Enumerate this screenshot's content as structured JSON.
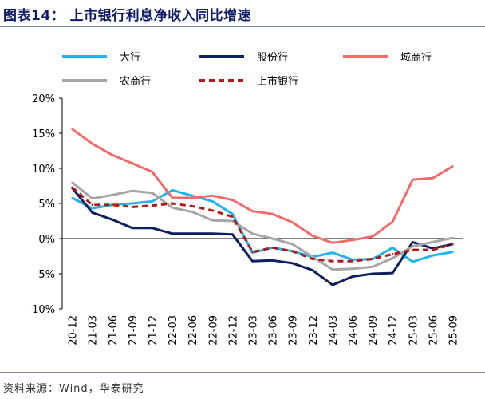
{
  "title": "图表14：  上市银行利息净收入同比增速",
  "source": "资料来源：Wind，华泰研究",
  "chart_data": {
    "type": "line",
    "categories": [
      "20-12",
      "21-03",
      "21-06",
      "21-09",
      "21-12",
      "22-03",
      "22-06",
      "22-09",
      "22-12",
      "23-03",
      "23-06",
      "23-09",
      "23-12",
      "24-03",
      "24-06",
      "24-09",
      "24-12",
      "25-03",
      "25-06",
      "25-09"
    ],
    "ylim": [
      -10,
      20
    ],
    "yticks": [
      "-10%",
      "-5%",
      "0%",
      "5%",
      "10%",
      "15%",
      "20%"
    ],
    "ytick_values": [
      -10,
      -5,
      0,
      5,
      10,
      15,
      20
    ],
    "legend_position": "top",
    "series": [
      {
        "name": "大行",
        "color": "#1fb4ea",
        "dash": "solid",
        "values": [
          5.8,
          4.3,
          4.8,
          5.0,
          5.3,
          6.9,
          6.1,
          5.3,
          3.5,
          -2.0,
          -1.3,
          -1.8,
          -2.6,
          -2.0,
          -3.0,
          -2.9,
          -1.3,
          -3.3,
          -2.4,
          -1.9
        ]
      },
      {
        "name": "股份行",
        "color": "#0d1f5c",
        "dash": "solid",
        "values": [
          7.2,
          3.7,
          2.7,
          1.5,
          1.5,
          0.7,
          0.7,
          0.7,
          0.6,
          -3.2,
          -3.1,
          -3.5,
          -4.5,
          -6.6,
          -5.4,
          -5.0,
          -4.9,
          -0.5,
          -1.4,
          -0.8
        ]
      },
      {
        "name": "城商行",
        "color": "#f26b6b",
        "dash": "solid",
        "values": [
          15.6,
          13.5,
          11.9,
          10.7,
          9.5,
          5.8,
          5.8,
          6.1,
          5.5,
          3.9,
          3.5,
          2.3,
          0.4,
          -0.6,
          -0.2,
          0.3,
          2.4,
          8.4,
          8.6,
          10.3
        ]
      },
      {
        "name": "农商行",
        "color": "#a6a6a6",
        "dash": "solid",
        "values": [
          8.0,
          5.7,
          6.2,
          6.8,
          6.5,
          4.4,
          3.8,
          2.6,
          2.5,
          0.7,
          0.0,
          -0.8,
          -2.6,
          -4.4,
          -4.3,
          -4.0,
          -2.8,
          -1.1,
          -0.5,
          0.1
        ]
      },
      {
        "name": "上市银行",
        "color": "#b01a1a",
        "dash": "dashed",
        "values": [
          7.3,
          4.8,
          4.8,
          4.5,
          4.7,
          5.0,
          4.6,
          4.0,
          3.1,
          -1.9,
          -1.3,
          -1.8,
          -2.9,
          -3.2,
          -3.2,
          -2.9,
          -2.2,
          -1.6,
          -1.6,
          -0.8
        ]
      }
    ]
  }
}
